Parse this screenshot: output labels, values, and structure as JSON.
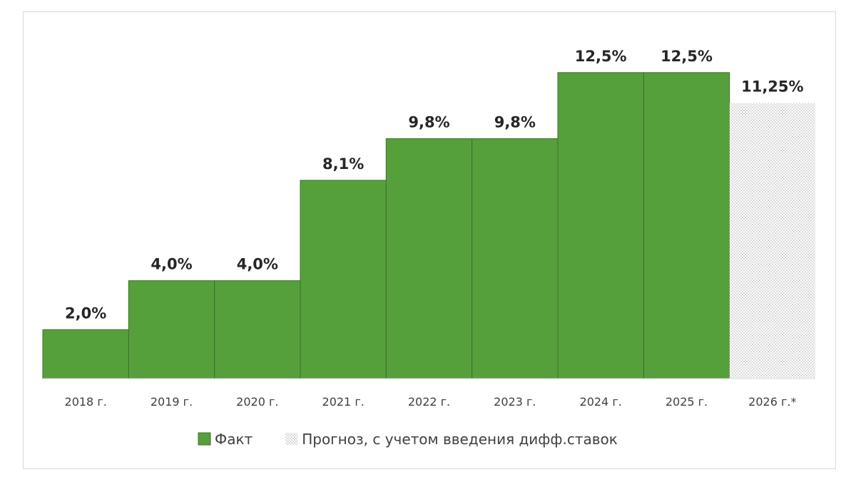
{
  "chart_data": {
    "type": "bar",
    "categories": [
      "2018 г.",
      "2019 г.",
      "2020 г.",
      "2021 г.",
      "2022 г.",
      "2023 г.",
      "2024 г.",
      "2025 г.",
      "2026 г.*"
    ],
    "values": [
      2.0,
      4.0,
      4.0,
      8.1,
      9.8,
      9.8,
      12.5,
      12.5,
      11.25
    ],
    "labels": [
      "2,0%",
      "4,0%",
      "4,0%",
      "8,1%",
      "9,8%",
      "9,8%",
      "12,5%",
      "12,5%",
      "11,25%"
    ],
    "series_of_point": [
      "fact",
      "fact",
      "fact",
      "fact",
      "fact",
      "fact",
      "fact",
      "fact",
      "forecast"
    ],
    "legend": {
      "position": "bottom",
      "items": [
        {
          "key": "fact",
          "label": "Факт",
          "color": "#56a03c",
          "pattern": "solid"
        },
        {
          "key": "forecast",
          "label": "Прогноз, с учетом введения дифф.ставок",
          "color": "#bfbfbf",
          "pattern": "dotted"
        }
      ]
    },
    "ylim": [
      0,
      14.3
    ],
    "grid": false,
    "title": "",
    "xlabel": "",
    "ylabel": ""
  }
}
